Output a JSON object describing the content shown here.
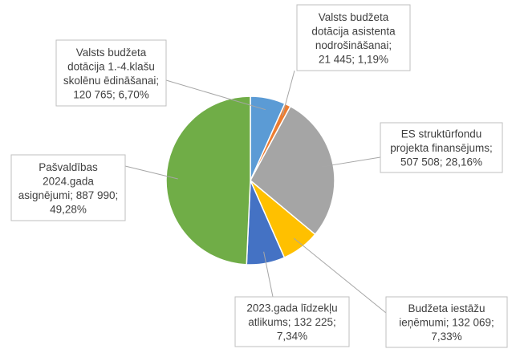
{
  "chart_data": {
    "type": "pie",
    "title": "",
    "slices": [
      {
        "label_lines": [
          "Valsts budžeta",
          "dotācija  1.-4.klašu",
          "skolēnu ēdināšanai;",
          "120 765; 6,70%"
        ],
        "value": 120765,
        "percent": 6.7,
        "color": "#5b9bd5"
      },
      {
        "label_lines": [
          "Valsts budžeta",
          "dotācija  asistenta",
          "nodrošināšanai;",
          "21 445; 1,19%"
        ],
        "value": 21445,
        "percent": 1.19,
        "color": "#ed7d31"
      },
      {
        "label_lines": [
          "ES struktūrfondu",
          "projekta finansējums;",
          "507 508; 28,16%"
        ],
        "value": 507508,
        "percent": 28.16,
        "color": "#a5a5a5"
      },
      {
        "label_lines": [
          "Budžeta iestāžu",
          "ieņēmumi; 132 069;",
          "7,33%"
        ],
        "value": 132069,
        "percent": 7.33,
        "color": "#ffc000"
      },
      {
        "label_lines": [
          "2023.gada līdzekļu",
          "atlikums; 132 225;",
          "7,34%"
        ],
        "value": 132225,
        "percent": 7.34,
        "color": "#4472c4"
      },
      {
        "label_lines": [
          "Pašvaldības",
          "2024.gada",
          "asignējumi; 887 990;",
          "49,28%"
        ],
        "value": 887990,
        "percent": 49.28,
        "color": "#70ad47"
      }
    ]
  }
}
